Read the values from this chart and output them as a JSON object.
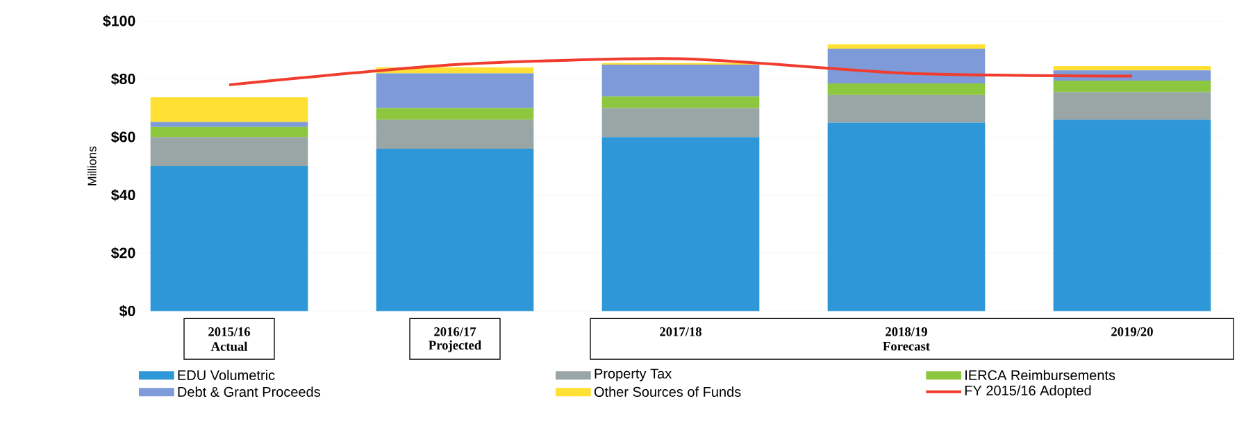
{
  "chart_data": {
    "type": "bar",
    "stacked": true,
    "ylabel": "Millions",
    "categories": [
      "2015/16",
      "2016/17",
      "2017/18",
      "2018/19",
      "2019/20"
    ],
    "annotations": [
      "Actual",
      "Projected",
      "Forecast"
    ],
    "series": [
      {
        "name": "EDU Volumetric",
        "color": "#2e97d8",
        "values": [
          50,
          56,
          60,
          65,
          66
        ]
      },
      {
        "name": "Property Tax",
        "color": "#9aa5a5",
        "values": [
          10,
          10,
          10,
          9.5,
          9.5
        ]
      },
      {
        "name": "IERCA Reimbursements",
        "color": "#8dc63f",
        "values": [
          3.5,
          4,
          4,
          4,
          4
        ]
      },
      {
        "name": "Debt & Grant Proceeds",
        "color": "#7f9ad8",
        "values": [
          1.7,
          12,
          11,
          12,
          3.5
        ]
      },
      {
        "name": "Other Sources of Funds",
        "color": "#ffe033",
        "values": [
          8.5,
          2,
          0.5,
          1.5,
          1.5
        ]
      },
      {
        "name": "FY 2015/16 Adopted",
        "type": "line",
        "color": "#f03c2e",
        "values": [
          78,
          85,
          87,
          82,
          81
        ],
        "line_style": "solid",
        "marker": "none"
      }
    ],
    "ylim": [
      0,
      100
    ],
    "yticks": [
      {
        "value": 0,
        "label": "$0"
      },
      {
        "value": 20,
        "label": "$20"
      },
      {
        "value": 40,
        "label": "$40"
      },
      {
        "value": 60,
        "label": "$60"
      },
      {
        "value": 80,
        "label": "$80"
      },
      {
        "value": 100,
        "label": "$100"
      }
    ],
    "grid": "y",
    "legend": "bottom"
  }
}
